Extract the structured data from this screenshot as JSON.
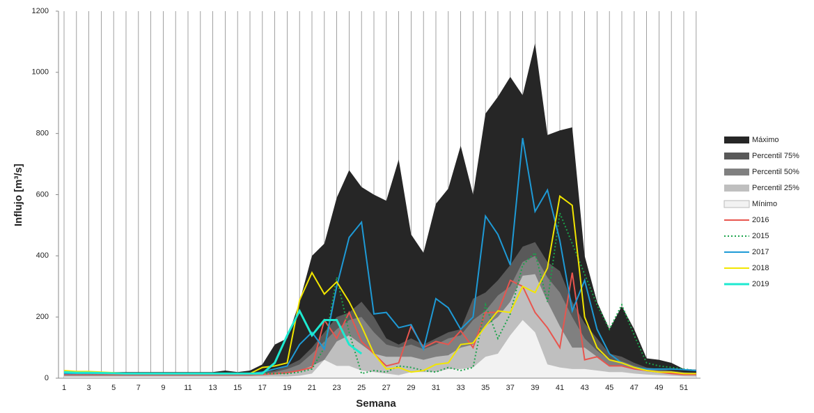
{
  "chart_data": {
    "type": "area-line",
    "y_label": "Influjo [m³/s]",
    "x_label": "Semana",
    "categories": [
      "1",
      null,
      "3",
      null,
      "5",
      null,
      "7",
      null,
      "9",
      null,
      "11",
      null,
      "13",
      null,
      "15",
      null,
      "17",
      null,
      "19",
      null,
      "21",
      null,
      "23",
      null,
      "25",
      null,
      "27",
      null,
      "29",
      null,
      "31",
      null,
      "33",
      null,
      "35",
      null,
      "37",
      null,
      "39",
      null,
      "41",
      null,
      "43",
      null,
      "45",
      null,
      "47",
      null,
      "49",
      null,
      "51",
      null
    ],
    "ylim": [
      0,
      1200
    ],
    "yticks": [
      0,
      200,
      400,
      600,
      800,
      1000,
      1200
    ],
    "grid": true,
    "series": [
      {
        "name": "Máximo",
        "color": "#262626",
        "area": true,
        "values": [
          20,
          20,
          20,
          20,
          20,
          20,
          20,
          20,
          20,
          20,
          20,
          20,
          20,
          25,
          20,
          25,
          45,
          110,
          130,
          250,
          400,
          440,
          590,
          680,
          625,
          600,
          580,
          715,
          470,
          410,
          570,
          620,
          760,
          600,
          865,
          920,
          985,
          925,
          1095,
          795,
          810,
          820,
          400,
          250,
          160,
          235,
          160,
          65,
          60,
          50,
          30,
          28
        ]
      },
      {
        "name": "Percentil 75%",
        "color": "#595959",
        "area": true,
        "values": [
          15,
          15,
          15,
          15,
          15,
          15,
          15,
          15,
          15,
          15,
          15,
          15,
          15,
          15,
          15,
          15,
          20,
          25,
          40,
          60,
          100,
          150,
          200,
          215,
          250,
          200,
          130,
          110,
          130,
          110,
          130,
          150,
          160,
          260,
          280,
          320,
          370,
          430,
          445,
          380,
          350,
          250,
          180,
          130,
          80,
          70,
          50,
          35,
          30,
          25,
          20,
          18
        ]
      },
      {
        "name": "Percentil 50%",
        "color": "#808080",
        "area": true,
        "values": [
          12,
          12,
          12,
          12,
          12,
          12,
          12,
          12,
          12,
          12,
          12,
          12,
          12,
          12,
          12,
          12,
          15,
          20,
          30,
          45,
          80,
          120,
          160,
          190,
          200,
          150,
          110,
          100,
          110,
          95,
          110,
          130,
          140,
          190,
          220,
          270,
          300,
          380,
          400,
          330,
          280,
          200,
          130,
          90,
          60,
          55,
          40,
          30,
          25,
          22,
          18,
          15
        ]
      },
      {
        "name": "Percentil 25%",
        "color": "#bfbfbf",
        "area": true,
        "values": [
          8,
          8,
          8,
          8,
          8,
          8,
          8,
          8,
          8,
          8,
          8,
          8,
          8,
          8,
          8,
          8,
          10,
          12,
          15,
          25,
          40,
          60,
          120,
          140,
          110,
          80,
          70,
          70,
          70,
          60,
          70,
          75,
          100,
          110,
          170,
          200,
          250,
          335,
          340,
          250,
          170,
          100,
          100,
          70,
          40,
          40,
          30,
          22,
          18,
          15,
          12,
          10
        ]
      },
      {
        "name": "Mínimo",
        "color": "#f2f2f2",
        "area": true,
        "values": [
          5,
          5,
          5,
          5,
          5,
          5,
          5,
          5,
          5,
          5,
          5,
          5,
          5,
          5,
          5,
          5,
          5,
          5,
          5,
          8,
          15,
          60,
          40,
          40,
          25,
          20,
          15,
          10,
          20,
          20,
          20,
          30,
          30,
          35,
          70,
          80,
          140,
          190,
          150,
          45,
          35,
          30,
          30,
          25,
          20,
          20,
          15,
          12,
          10,
          8,
          6,
          5
        ]
      },
      {
        "name": "2016",
        "color": "#e8554e",
        "values": [
          12,
          12,
          12,
          12,
          12,
          12,
          12,
          12,
          12,
          12,
          12,
          12,
          12,
          12,
          12,
          12,
          12,
          15,
          18,
          25,
          35,
          190,
          130,
          215,
          120,
          80,
          40,
          50,
          170,
          100,
          120,
          110,
          155,
          100,
          215,
          215,
          320,
          300,
          215,
          165,
          100,
          345,
          60,
          70,
          40,
          40,
          30,
          25,
          20,
          15,
          12,
          12
        ]
      },
      {
        "name": "2015",
        "color": "#1aa34a",
        "dotted": true,
        "values": [
          15,
          15,
          15,
          15,
          15,
          15,
          15,
          15,
          15,
          15,
          15,
          15,
          15,
          15,
          15,
          15,
          15,
          15,
          15,
          20,
          30,
          100,
          330,
          150,
          15,
          25,
          20,
          40,
          35,
          25,
          20,
          35,
          25,
          35,
          240,
          130,
          210,
          370,
          410,
          250,
          540,
          440,
          340,
          240,
          160,
          240,
          140,
          50,
          40,
          35,
          30,
          25
        ]
      },
      {
        "name": "2017",
        "color": "#1e9ad6",
        "values": [
          15,
          15,
          15,
          15,
          15,
          15,
          15,
          15,
          15,
          15,
          15,
          15,
          15,
          15,
          15,
          15,
          20,
          30,
          40,
          110,
          150,
          95,
          300,
          460,
          510,
          210,
          215,
          165,
          175,
          95,
          260,
          230,
          160,
          200,
          530,
          470,
          370,
          785,
          545,
          615,
          450,
          220,
          320,
          160,
          80,
          50,
          35,
          30,
          30,
          30,
          28,
          25
        ]
      },
      {
        "name": "2018",
        "color": "#f2e600",
        "values": [
          25,
          22,
          22,
          20,
          18,
          15,
          15,
          15,
          15,
          15,
          15,
          15,
          15,
          15,
          15,
          15,
          35,
          40,
          50,
          255,
          345,
          275,
          315,
          250,
          170,
          80,
          30,
          35,
          20,
          25,
          45,
          50,
          110,
          115,
          170,
          220,
          215,
          300,
          280,
          360,
          595,
          565,
          200,
          100,
          60,
          50,
          35,
          25,
          20,
          20,
          15,
          15
        ]
      },
      {
        "name": "2019",
        "color": "#1de9d0",
        "bold": true,
        "values": [
          20,
          18,
          18,
          17,
          16,
          15,
          15,
          15,
          15,
          15,
          15,
          15,
          15,
          15,
          15,
          15,
          15,
          50,
          140,
          220,
          140,
          190,
          190,
          110,
          80,
          null,
          null,
          null,
          null,
          null,
          null,
          null,
          null,
          null,
          null,
          null,
          null,
          null,
          null,
          null,
          null,
          null,
          null,
          null,
          null,
          null,
          null,
          null,
          null,
          null,
          null,
          null
        ]
      }
    ]
  }
}
